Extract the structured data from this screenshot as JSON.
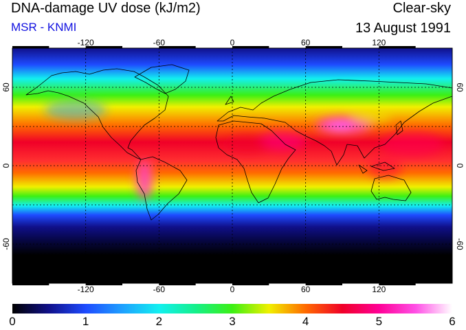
{
  "header": {
    "title": "DNA-damage UV dose (kJ/m2)",
    "source": "MSR - KNMI",
    "condition": "Clear-sky",
    "date": "13 August 1991"
  },
  "map": {
    "projection": "equirectangular",
    "lon_range": [
      -180,
      180
    ],
    "lat_range": [
      -90,
      90
    ],
    "graticule_lons": [
      -120,
      -60,
      0,
      60,
      120
    ],
    "graticule_lats": [
      -60,
      -30,
      0,
      30,
      60
    ],
    "lon_tick_labels": [
      "-120",
      "-60",
      "0",
      "60",
      "120"
    ],
    "lat_tick_labels_left": [
      "60",
      "0",
      "-60"
    ],
    "lat_tick_labels_right": [
      "60",
      "0",
      "-60"
    ]
  },
  "colorbar": {
    "min": 0,
    "max": 6,
    "tick_labels": [
      "0",
      "1",
      "2",
      "3",
      "4",
      "5",
      "6"
    ],
    "stops": [
      {
        "value": 0.0,
        "color": "#000000"
      },
      {
        "value": 0.5,
        "color": "#10108a"
      },
      {
        "value": 1.0,
        "color": "#1e4bff"
      },
      {
        "value": 1.5,
        "color": "#1ea0ff"
      },
      {
        "value": 2.0,
        "color": "#12f0f0"
      },
      {
        "value": 2.5,
        "color": "#14f08a"
      },
      {
        "value": 3.0,
        "color": "#3cf014"
      },
      {
        "value": 3.5,
        "color": "#f0f000"
      },
      {
        "value": 4.0,
        "color": "#ff6a00"
      },
      {
        "value": 4.5,
        "color": "#f00028"
      },
      {
        "value": 5.0,
        "color": "#ff0096"
      },
      {
        "value": 5.5,
        "color": "#ff50e6"
      },
      {
        "value": 6.0,
        "color": "#ffffff"
      }
    ]
  }
}
